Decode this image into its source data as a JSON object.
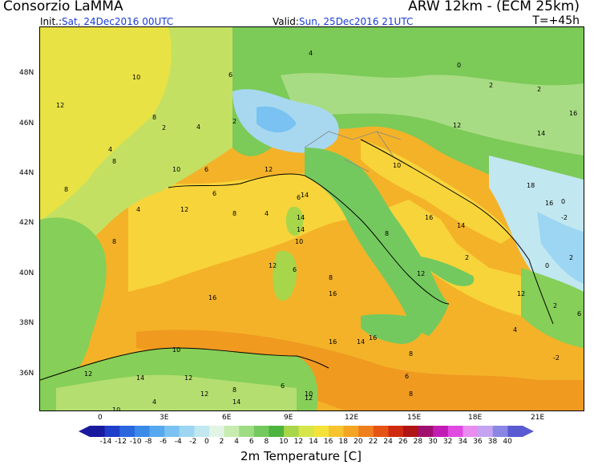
{
  "header": {
    "title": "Consorzio LaMMA",
    "model": "ARW 12km  -  (ECM 25km)",
    "init_label": "Init.:",
    "init_value": "Sat, 24Dec2016 00UTC",
    "valid_label": "Valid:",
    "valid_value": "Sun, 25Dec2016 21UTC",
    "step": "T=+45h"
  },
  "map": {
    "lat_labels": [
      "48N",
      "46N",
      "44N",
      "42N",
      "40N",
      "38N",
      "36N"
    ],
    "lon_labels": [
      "0",
      "3E",
      "6E",
      "9E",
      "12E",
      "15E",
      "18E",
      "21E"
    ],
    "temperature_labels": [
      "4",
      "10",
      "6",
      "8",
      "2",
      "4",
      "2",
      "4",
      "12",
      "8",
      "10",
      "6",
      "8",
      "4",
      "6",
      "8",
      "12",
      "4",
      "6",
      "12",
      "14",
      "14",
      "14",
      "10",
      "8",
      "12",
      "16",
      "6",
      "8",
      "16",
      "16",
      "8",
      "14",
      "6",
      "12",
      "14",
      "12",
      "10",
      "16",
      "2",
      "8",
      "12",
      "12",
      "16",
      "14",
      "10",
      "12",
      "14",
      "16",
      "18",
      "16",
      "2",
      "0",
      "2",
      "-2",
      "0",
      "2",
      "6",
      "4",
      "-2",
      "0",
      "2",
      "14",
      "12",
      "10",
      "8",
      "6",
      "4",
      "12",
      "8",
      "10"
    ],
    "colors": {
      "sea_warm": "#f4b228",
      "sea_cool": "#f7d43a",
      "land_green": "#5fc24a",
      "land_light": "#a6dc72",
      "cold_blue": "#a8d8f0",
      "border": "#000000"
    }
  },
  "colorbar": {
    "title": "2m Temperature [C]",
    "labels": [
      "-14",
      "-12",
      "-10",
      "-8",
      "-6",
      "-4",
      "-2",
      "0",
      "2",
      "4",
      "6",
      "8",
      "10",
      "12",
      "14",
      "16",
      "18",
      "20",
      "22",
      "24",
      "26",
      "28",
      "30",
      "32",
      "34",
      "36",
      "38",
      "40"
    ],
    "colors": [
      "#1a1a9e",
      "#1f3ec9",
      "#2a66de",
      "#3a8ae8",
      "#56a8ef",
      "#79c2f2",
      "#9dd6f2",
      "#c1e7f0",
      "#e2f4e4",
      "#c8ecb0",
      "#9edc84",
      "#74c95e",
      "#4db43e",
      "#a8d64a",
      "#d6e54a",
      "#f4e23a",
      "#f5c42e",
      "#f4a524",
      "#ef7e1c",
      "#e55412",
      "#cf2a10",
      "#b01414",
      "#a0106e",
      "#c31cb6",
      "#e04ae0",
      "#e98cf0",
      "#c4a4f2",
      "#8a86e6",
      "#5a5ad2"
    ]
  }
}
